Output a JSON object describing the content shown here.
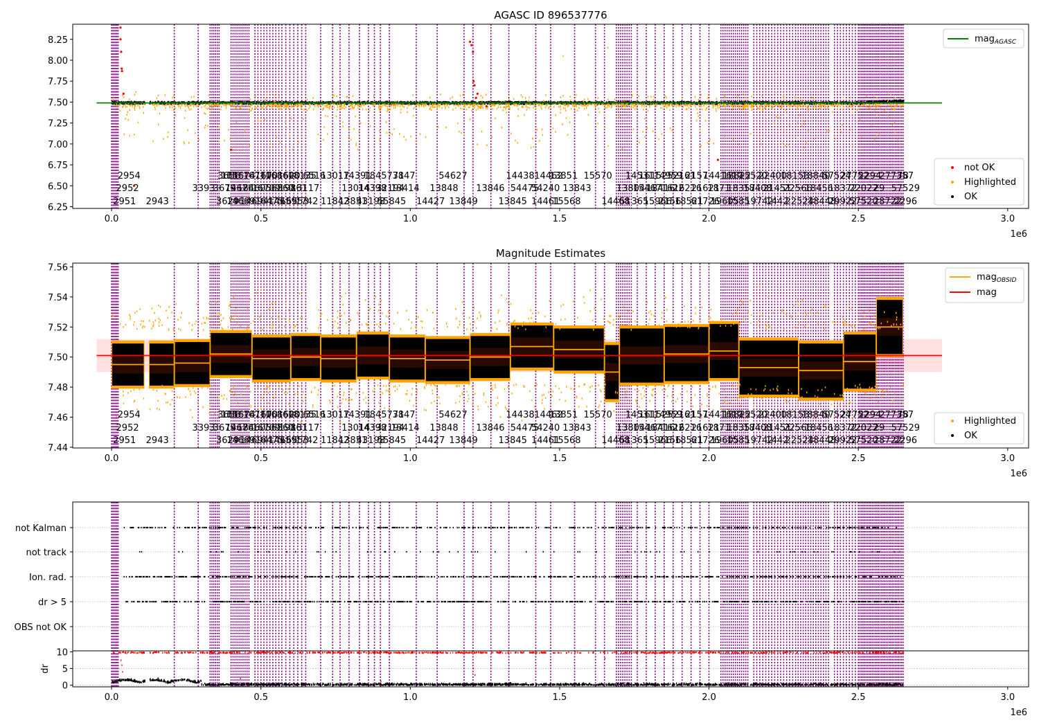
{
  "chart_data": [
    {
      "type": "scatter",
      "title": "AGASC ID 896537776",
      "xlim": [
        -130000,
        3070000
      ],
      "ylim": [
        6.23,
        8.43
      ],
      "x_ticks": [
        0,
        500000,
        1000000,
        1500000,
        2000000,
        2500000,
        3000000
      ],
      "x_tick_labels": [
        "0.0",
        "0.5",
        "1.0",
        "1.5",
        "2.0",
        "2.5",
        "3.0"
      ],
      "x_offset_label": "1e6",
      "y_ticks": [
        6.25,
        6.5,
        6.75,
        7.0,
        7.25,
        7.5,
        7.75,
        8.0,
        8.25
      ],
      "y_tick_labels": [
        "6.25",
        "6.50",
        "6.75",
        "7.00",
        "7.25",
        "7.50",
        "7.75",
        "8.00",
        "8.25"
      ],
      "mag_agasc": 7.49,
      "legend_upper": [
        {
          "label": "mag",
          "subscript": "AGASC",
          "color": "#008000"
        }
      ],
      "legend_lower": [
        {
          "label": "not OK",
          "color": "#ff0000"
        },
        {
          "label": "Highlighted",
          "color": "#ffa500"
        },
        {
          "label": "OK",
          "color": "#000000"
        }
      ],
      "red_points": [
        [
          30000,
          8.39
        ],
        [
          30000,
          8.25
        ],
        [
          32000,
          8.1
        ],
        [
          34000,
          7.9
        ],
        [
          35000,
          7.87
        ],
        [
          40000,
          7.6
        ],
        [
          75000,
          6.5
        ],
        [
          400000,
          6.93
        ],
        [
          1200000,
          8.22
        ],
        [
          1205000,
          8.18
        ],
        [
          1210000,
          8.1
        ],
        [
          1212000,
          7.75
        ],
        [
          1215000,
          7.7
        ],
        [
          1220000,
          7.55
        ],
        [
          1225000,
          7.6
        ],
        [
          1255000,
          7.45
        ],
        [
          2030000,
          6.81
        ]
      ]
    },
    {
      "type": "scatter",
      "title": "Magnitude Estimates",
      "xlim": [
        -130000,
        3070000
      ],
      "ylim": [
        7.4395,
        7.5625
      ],
      "x_ticks": [
        0,
        500000,
        1000000,
        1500000,
        2000000,
        2500000,
        3000000
      ],
      "x_tick_labels": [
        "0.0",
        "0.5",
        "1.0",
        "1.5",
        "2.0",
        "2.5",
        "3.0"
      ],
      "x_offset_label": "1e6",
      "y_ticks": [
        7.44,
        7.46,
        7.48,
        7.5,
        7.52,
        7.54,
        7.56
      ],
      "y_tick_labels": [
        "7.44",
        "7.46",
        "7.48",
        "7.50",
        "7.52",
        "7.54",
        "7.56"
      ],
      "mag": 7.501,
      "mag_band": [
        7.49,
        7.512
      ],
      "legend_upper": [
        {
          "label": "mag",
          "subscript": "OBSID",
          "color": "#ffa500"
        },
        {
          "label": "mag",
          "subscript": "",
          "color": "#ff0000"
        }
      ],
      "legend_lower": [
        {
          "label": "Highlighted",
          "color": "#ffa500"
        },
        {
          "label": "OK",
          "color": "#000000"
        }
      ],
      "obsid_segments": [
        {
          "x0": 0,
          "x1": 110000,
          "mag": 7.495
        },
        {
          "x0": 125000,
          "x1": 210000,
          "mag": 7.495
        },
        {
          "x0": 210000,
          "x1": 330000,
          "mag": 7.496
        },
        {
          "x0": 330000,
          "x1": 470000,
          "mag": 7.502
        },
        {
          "x0": 470000,
          "x1": 600000,
          "mag": 7.499
        },
        {
          "x0": 600000,
          "x1": 700000,
          "mag": 7.5
        },
        {
          "x0": 700000,
          "x1": 820000,
          "mag": 7.499
        },
        {
          "x0": 820000,
          "x1": 930000,
          "mag": 7.501
        },
        {
          "x0": 930000,
          "x1": 1050000,
          "mag": 7.499
        },
        {
          "x0": 1050000,
          "x1": 1200000,
          "mag": 7.498
        },
        {
          "x0": 1200000,
          "x1": 1335000,
          "mag": 7.5
        },
        {
          "x0": 1335000,
          "x1": 1480000,
          "mag": 7.507
        },
        {
          "x0": 1480000,
          "x1": 1650000,
          "mag": 7.505
        },
        {
          "x0": 1650000,
          "x1": 1700000,
          "mag": 7.49
        },
        {
          "x0": 1700000,
          "x1": 1850000,
          "mag": 7.501
        },
        {
          "x0": 1850000,
          "x1": 2000000,
          "mag": 7.502
        },
        {
          "x0": 2000000,
          "x1": 2100000,
          "mag": 7.504
        },
        {
          "x0": 2100000,
          "x1": 2300000,
          "mag": 7.493
        },
        {
          "x0": 2300000,
          "x1": 2450000,
          "mag": 7.491
        },
        {
          "x0": 2450000,
          "x1": 2560000,
          "mag": 7.497
        },
        {
          "x0": 2560000,
          "x1": 2650000,
          "mag": 7.52
        }
      ]
    },
    {
      "type": "scatter",
      "title": "",
      "xlim": [
        -130000,
        3070000
      ],
      "x_ticks": [
        0,
        500000,
        1000000,
        1500000,
        2000000,
        2500000,
        3000000
      ],
      "x_tick_labels": [
        "0.0",
        "0.5",
        "1.0",
        "1.5",
        "2.0",
        "2.5",
        "3.0"
      ],
      "x_offset_label": "1e6",
      "flag_rows": [
        "not Kalman",
        "not track",
        "Ion. rad.",
        "dr > 5",
        "OBS not OK"
      ],
      "dr_ylabel": "dr",
      "dr_ylim": [
        -0.5,
        10.3
      ],
      "dr_ticks": [
        0,
        5,
        10
      ],
      "dr_tick_labels": [
        "0",
        "5",
        "10"
      ]
    }
  ],
  "obsid_labels": {
    "row1": [
      {
        "x": 20000,
        "t": "2954"
      },
      {
        "x": 355000,
        "t": "3656"
      },
      {
        "x": 366000,
        "t": "16"
      },
      {
        "x": 385000,
        "t": "156"
      },
      {
        "x": 405000,
        "t": "1674"
      },
      {
        "x": 440000,
        "t": "16710"
      },
      {
        "x": 480000,
        "t": "1670"
      },
      {
        "x": 515000,
        "t": "16860"
      },
      {
        "x": 555000,
        "t": "1620"
      },
      {
        "x": 590000,
        "t": "18135"
      },
      {
        "x": 640000,
        "t": "6516"
      },
      {
        "x": 700000,
        "t": "13017"
      },
      {
        "x": 775000,
        "t": "14391"
      },
      {
        "x": 845000,
        "t": "1845771"
      },
      {
        "x": 940000,
        "t": "3847"
      },
      {
        "x": 1095000,
        "t": "54627"
      },
      {
        "x": 1320000,
        "t": "14438"
      },
      {
        "x": 1415000,
        "t": "14462"
      },
      {
        "x": 1465000,
        "t": "13851"
      },
      {
        "x": 1580000,
        "t": "15570"
      },
      {
        "x": 1720000,
        "t": "14531"
      },
      {
        "x": 1765000,
        "t": "16152"
      },
      {
        "x": 1815000,
        "t": "14959"
      },
      {
        "x": 1860000,
        "t": "52161"
      },
      {
        "x": 1920000,
        "t": "2157"
      },
      {
        "x": 1980000,
        "t": "1441617"
      },
      {
        "x": 2045000,
        "t": "18822"
      },
      {
        "x": 2100000,
        "t": "15520"
      },
      {
        "x": 2165000,
        "t": "22400"
      },
      {
        "x": 2240000,
        "t": "18153"
      },
      {
        "x": 2310000,
        "t": "18840"
      },
      {
        "x": 2380000,
        "t": "57524"
      },
      {
        "x": 2440000,
        "t": "27752"
      },
      {
        "x": 2500000,
        "t": "2294"
      },
      {
        "x": 2570000,
        "t": "277357"
      },
      {
        "x": 2630000,
        "t": "78"
      }
    ],
    "row2": [
      {
        "x": 15000,
        "t": "2952"
      },
      {
        "x": 270000,
        "t": "3393"
      },
      {
        "x": 340000,
        "t": "3679"
      },
      {
        "x": 380000,
        "t": "14676"
      },
      {
        "x": 420000,
        "t": "18460"
      },
      {
        "x": 470000,
        "t": "16709"
      },
      {
        "x": 515000,
        "t": "56860"
      },
      {
        "x": 560000,
        "t": "19861"
      },
      {
        "x": 600000,
        "t": "13117"
      },
      {
        "x": 770000,
        "t": "13014"
      },
      {
        "x": 825000,
        "t": "14398"
      },
      {
        "x": 885000,
        "t": "32194"
      },
      {
        "x": 935000,
        "t": "13414"
      },
      {
        "x": 1065000,
        "t": "13848"
      },
      {
        "x": 1220000,
        "t": "13846"
      },
      {
        "x": 1335000,
        "t": "54475"
      },
      {
        "x": 1405000,
        "t": "54240"
      },
      {
        "x": 1510000,
        "t": "13843"
      },
      {
        "x": 1690000,
        "t": "13804"
      },
      {
        "x": 1745000,
        "t": "15467"
      },
      {
        "x": 1790000,
        "t": "18416"
      },
      {
        "x": 1840000,
        "t": "1622"
      },
      {
        "x": 1880000,
        "t": "16216"
      },
      {
        "x": 1940000,
        "t": "21621"
      },
      {
        "x": 1995000,
        "t": "1871"
      },
      {
        "x": 2060000,
        "t": "18357"
      },
      {
        "x": 2115000,
        "t": "18408"
      },
      {
        "x": 2180000,
        "t": "21451"
      },
      {
        "x": 2250000,
        "t": "22566"
      },
      {
        "x": 2320000,
        "t": "18456"
      },
      {
        "x": 2400000,
        "t": "18372"
      },
      {
        "x": 2470000,
        "t": "22022"
      },
      {
        "x": 2550000,
        "t": "29"
      },
      {
        "x": 2610000,
        "t": "57529"
      }
    ],
    "row3": [
      {
        "x": 5000,
        "t": "2951"
      },
      {
        "x": 115000,
        "t": "2943"
      },
      {
        "x": 350000,
        "t": "3629"
      },
      {
        "x": 385000,
        "t": "14669"
      },
      {
        "x": 430000,
        "t": "14694"
      },
      {
        "x": 480000,
        "t": "16475"
      },
      {
        "x": 525000,
        "t": "14659"
      },
      {
        "x": 565000,
        "t": "16553"
      },
      {
        "x": 615000,
        "t": "1742"
      },
      {
        "x": 700000,
        "t": "11842"
      },
      {
        "x": 760000,
        "t": "13851"
      },
      {
        "x": 820000,
        "t": "43198"
      },
      {
        "x": 890000,
        "t": "55845"
      },
      {
        "x": 1020000,
        "t": "14427"
      },
      {
        "x": 1130000,
        "t": "13849"
      },
      {
        "x": 1295000,
        "t": "13845"
      },
      {
        "x": 1405000,
        "t": "14461"
      },
      {
        "x": 1475000,
        "t": "15568"
      },
      {
        "x": 1640000,
        "t": "14468"
      },
      {
        "x": 1700000,
        "t": "51"
      },
      {
        "x": 1740000,
        "t": "365"
      },
      {
        "x": 1780000,
        "t": "15966"
      },
      {
        "x": 1830000,
        "t": "2156"
      },
      {
        "x": 1885000,
        "t": "18521"
      },
      {
        "x": 1940000,
        "t": "61726"
      },
      {
        "x": 2005000,
        "t": "19605"
      },
      {
        "x": 2060000,
        "t": "1585"
      },
      {
        "x": 2120000,
        "t": "19742"
      },
      {
        "x": 2190000,
        "t": "1442"
      },
      {
        "x": 2255000,
        "t": "22524"
      },
      {
        "x": 2330000,
        "t": "18448"
      },
      {
        "x": 2400000,
        "t": "29922"
      },
      {
        "x": 2470000,
        "t": "57520"
      },
      {
        "x": 2550000,
        "t": "28722"
      },
      {
        "x": 2620000,
        "t": "2296"
      }
    ]
  }
}
